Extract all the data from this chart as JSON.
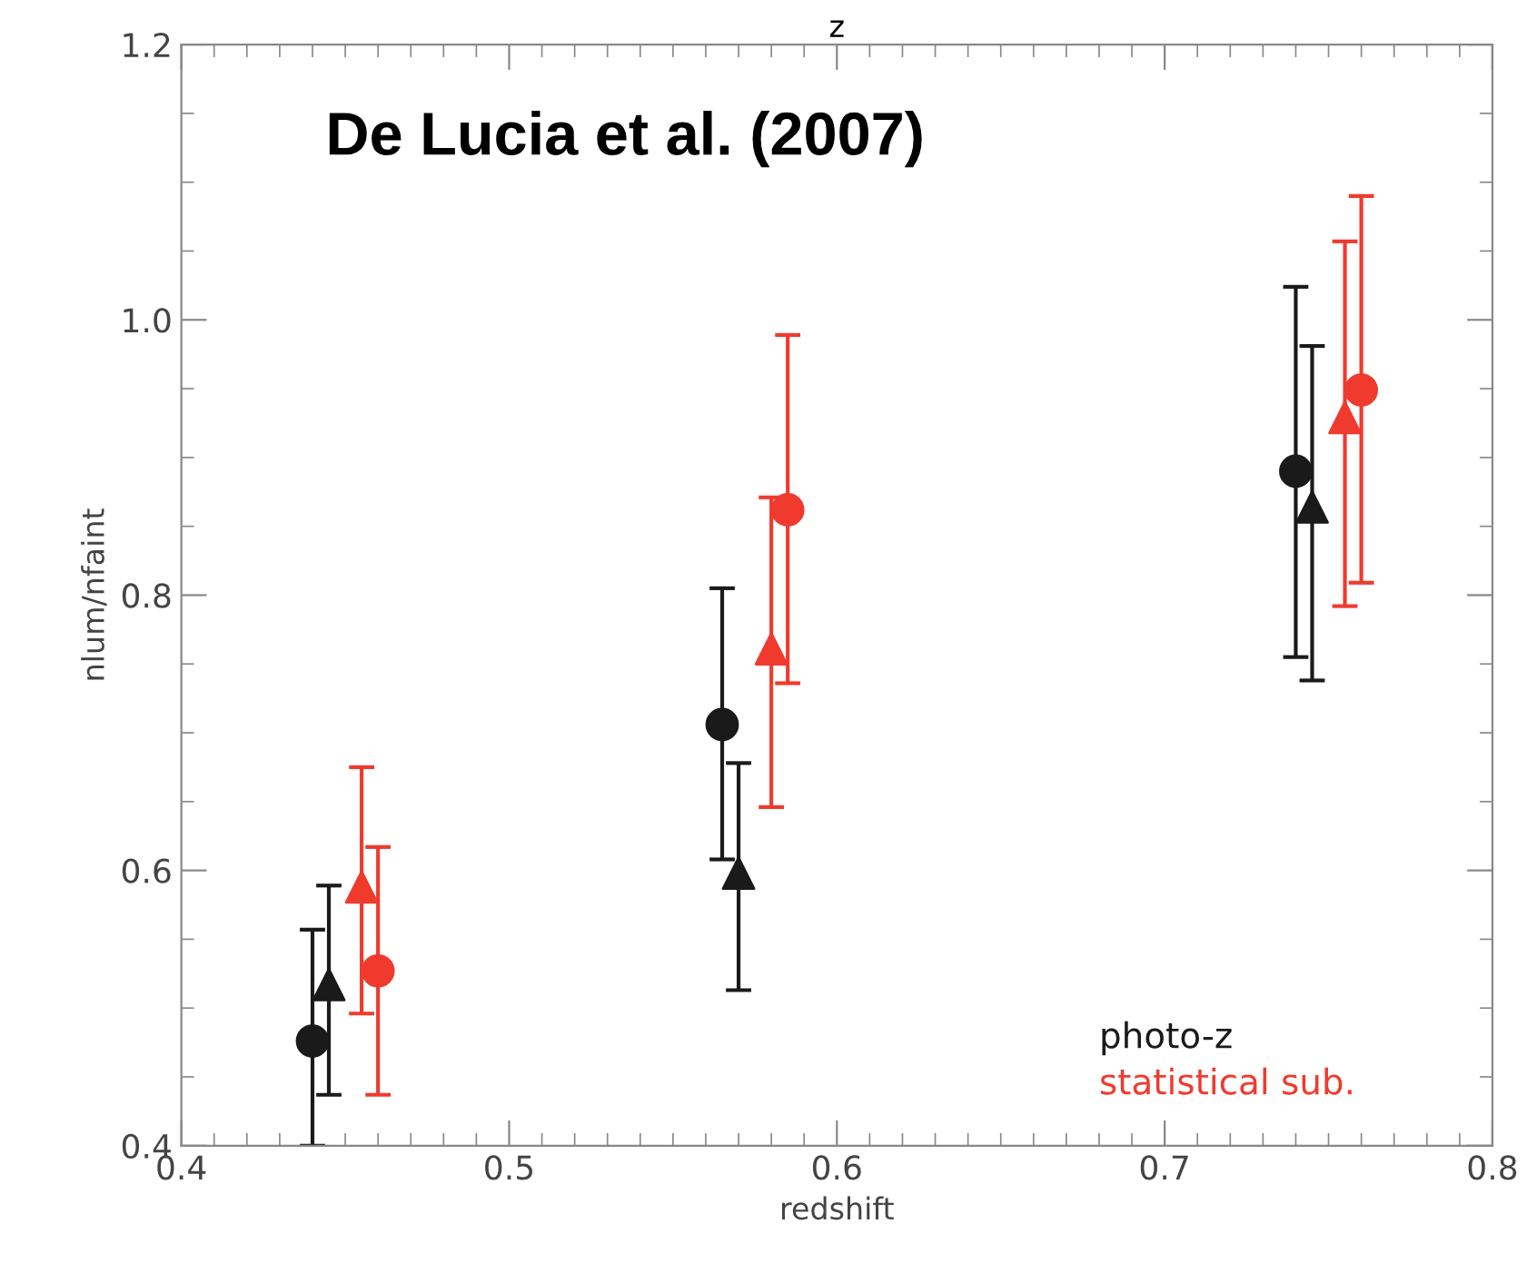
{
  "chart_data": {
    "type": "scatter",
    "xlabel": "redshift",
    "ylabel": "nlum/nfaint",
    "title": "z",
    "xlim": [
      0.4,
      0.8
    ],
    "xticks": [
      0.4,
      0.5,
      0.6,
      0.7,
      0.8
    ],
    "ylim": [
      0.4,
      1.2
    ],
    "yticks": [
      0.4,
      0.6,
      0.8,
      {
        "value": 1.0,
        "label": "1.0"
      },
      1.2
    ],
    "grid": false,
    "legend": "bottom right",
    "series": [
      {
        "name": "photo-z",
        "color": "#1a1a1a",
        "marker": "circle",
        "x": [
          0.44,
          0.565,
          0.74
        ],
        "values": [
          0.476,
          0.706,
          0.89
        ],
        "errors": [
          [
            0.4,
            0.557
          ],
          [
            0.608,
            0.805
          ],
          [
            0.755,
            1.024
          ]
        ]
      },
      {
        "color": "#1a1a1a",
        "marker": "triangle",
        "x": [
          0.445,
          0.57,
          0.745
        ],
        "values": [
          0.517,
          0.598,
          0.864
        ],
        "errors": [
          [
            0.437,
            0.589
          ],
          [
            0.513,
            0.678
          ],
          [
            0.738,
            0.981
          ]
        ]
      },
      {
        "name": "statistical sub.",
        "color": "#f03a2e",
        "marker": "circle",
        "x": [
          0.46,
          0.585,
          0.76
        ],
        "values": [
          0.527,
          0.862,
          0.949
        ],
        "errors": [
          [
            0.437,
            0.617
          ],
          [
            0.736,
            0.989
          ],
          [
            0.809,
            1.09
          ]
        ]
      },
      {
        "color": "#f03a2e",
        "marker": "triangle",
        "x": [
          0.455,
          0.58,
          0.755
        ],
        "values": [
          0.588,
          0.761,
          0.929
        ],
        "errors": [
          [
            0.496,
            0.675
          ],
          [
            0.646,
            0.871
          ],
          [
            0.792,
            1.057
          ]
        ]
      }
    ],
    "annotations": [
      "De Lucia et al. (2007)"
    ]
  }
}
